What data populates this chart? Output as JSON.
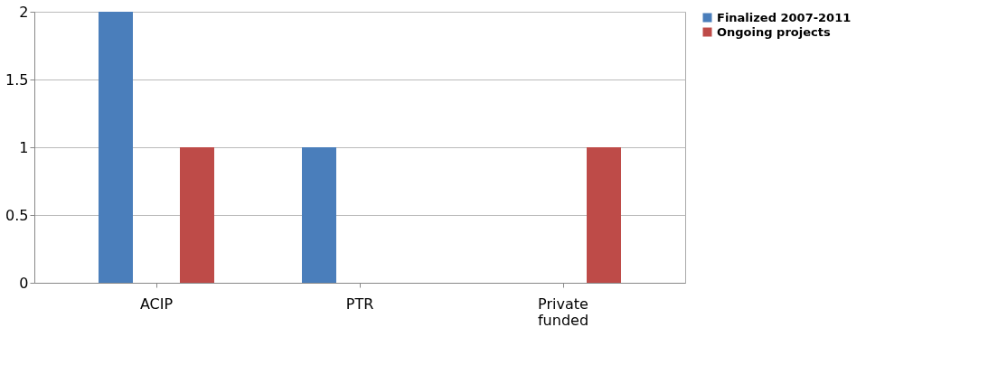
{
  "chart_data": {
    "type": "bar",
    "categories": [
      "ACIP",
      "PTR",
      "Private funded"
    ],
    "series": [
      {
        "name": "Finalized 2007-2011",
        "color": "#4a7ebb",
        "values": [
          2,
          1,
          0
        ]
      },
      {
        "name": "Ongoing projects",
        "color": "#be4b48",
        "values": [
          1,
          0,
          1
        ]
      }
    ],
    "ylim": [
      0,
      2
    ],
    "yticks": [
      0,
      0.5,
      1,
      1.5,
      2
    ],
    "grid": "y",
    "legend": "right"
  }
}
